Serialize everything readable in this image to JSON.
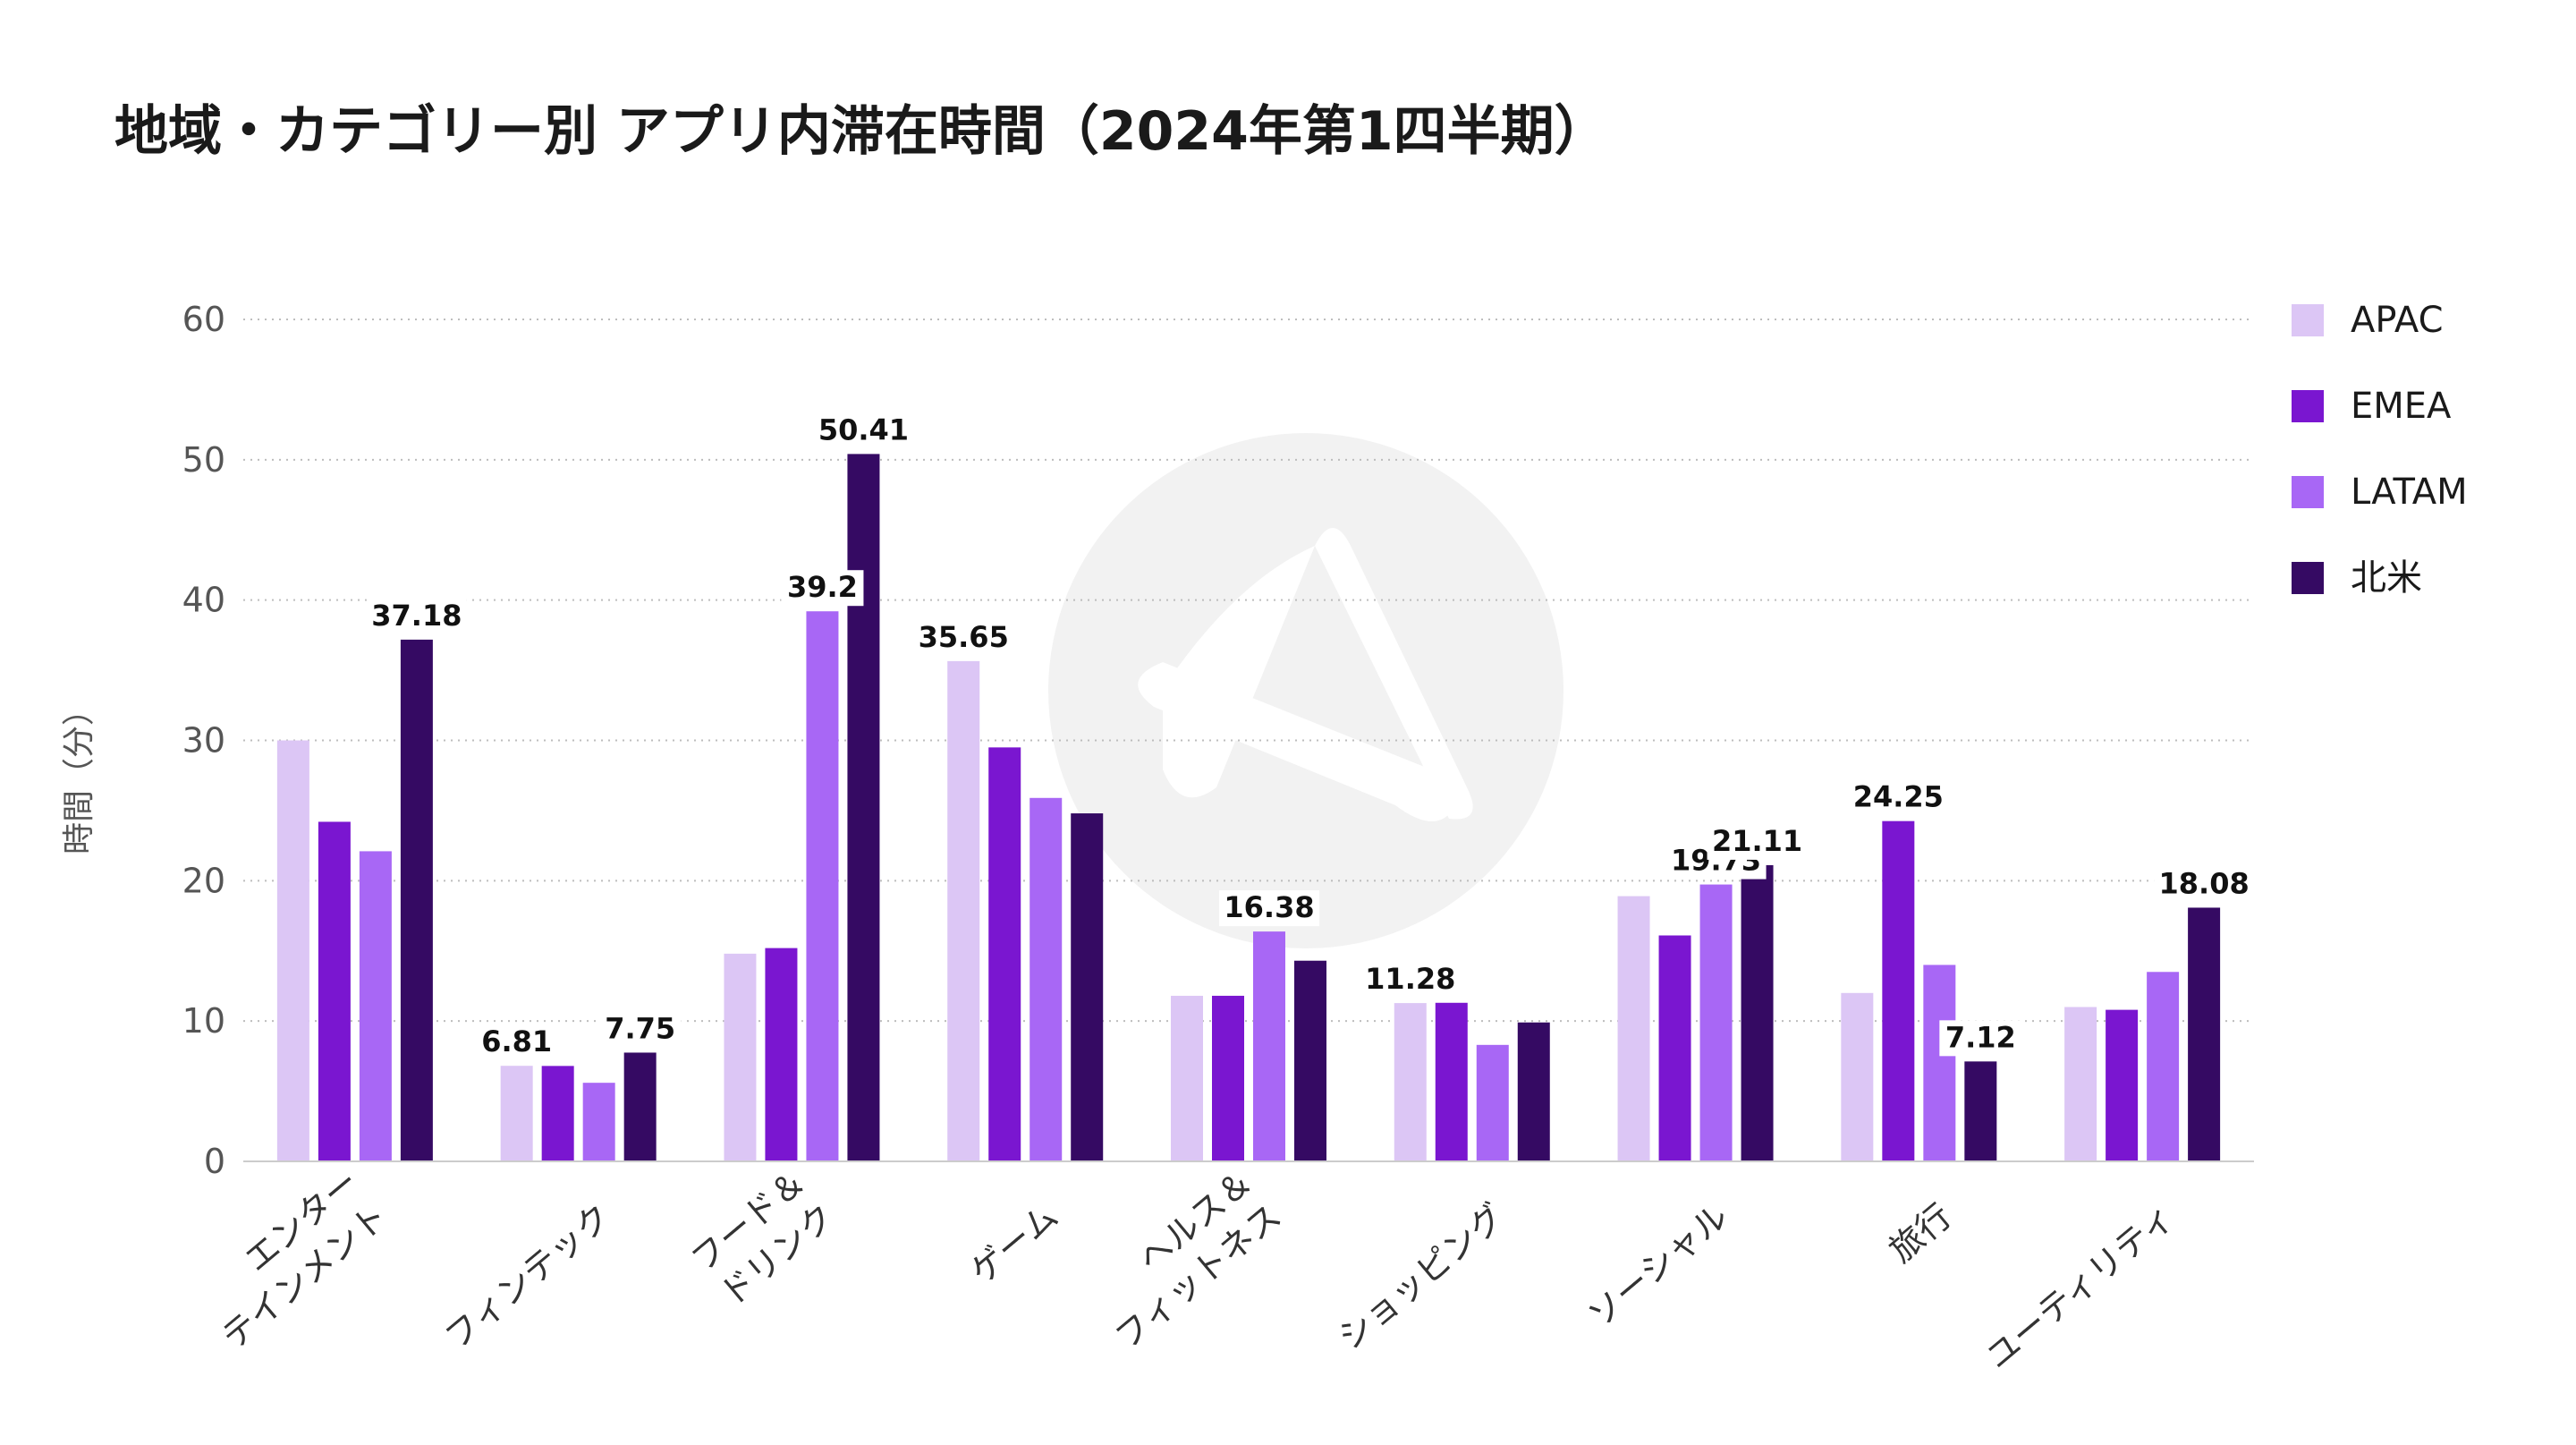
{
  "title": "地域・カテゴリー別 アプリ内滞在時間（2024年第1四半期）",
  "chart_data": {
    "type": "bar",
    "title": "地域・カテゴリー別 アプリ内滞在時間（2024年第1四半期）",
    "xlabel": "",
    "ylabel": "時間（分）",
    "ylim": [
      0,
      60
    ],
    "yticks": [
      "0",
      "10",
      "20",
      "30",
      "40",
      "50",
      "60"
    ],
    "grid": true,
    "legend_position": "right",
    "categories": [
      [
        "エンター",
        "テインメント"
      ],
      [
        "フィンテック"
      ],
      [
        "フード＆",
        "ドリンク"
      ],
      [
        "ゲーム"
      ],
      [
        "ヘルス＆",
        "フィットネス"
      ],
      [
        "ショッピング"
      ],
      [
        "ソーシャル"
      ],
      [
        "旅行"
      ],
      [
        "ユーティリティ"
      ]
    ],
    "series": [
      {
        "name": "APAC",
        "color": "#dcc6f5",
        "values": [
          30.0,
          6.81,
          14.8,
          35.65,
          11.8,
          11.28,
          18.9,
          12.0,
          11.0
        ]
      },
      {
        "name": "EMEA",
        "color": "#7a16d0",
        "values": [
          24.2,
          6.8,
          15.2,
          29.5,
          11.8,
          11.3,
          16.1,
          24.25,
          10.8
        ]
      },
      {
        "name": "LATAM",
        "color": "#a867f5",
        "values": [
          22.1,
          5.6,
          39.2,
          25.9,
          16.38,
          8.3,
          19.73,
          14.0,
          13.5
        ]
      },
      {
        "name": "北米",
        "color": "#350a63",
        "values": [
          37.18,
          7.75,
          50.41,
          24.8,
          14.3,
          9.9,
          21.11,
          7.12,
          18.08
        ]
      }
    ],
    "data_labels": [
      {
        "category": 0,
        "series": 3,
        "text": "37.18"
      },
      {
        "category": 1,
        "series": 0,
        "text": "6.81"
      },
      {
        "category": 1,
        "series": 3,
        "text": "7.75"
      },
      {
        "category": 2,
        "series": 2,
        "text": "39.2"
      },
      {
        "category": 2,
        "series": 3,
        "text": "50.41"
      },
      {
        "category": 3,
        "series": 0,
        "text": "35.65"
      },
      {
        "category": 4,
        "series": 2,
        "text": "16.38"
      },
      {
        "category": 5,
        "series": 0,
        "text": "11.28"
      },
      {
        "category": 6,
        "series": 2,
        "text": "19.73"
      },
      {
        "category": 6,
        "series": 3,
        "text": "21.11"
      },
      {
        "category": 7,
        "series": 1,
        "text": "24.25"
      },
      {
        "category": 7,
        "series": 3,
        "text": "7.12"
      },
      {
        "category": 8,
        "series": 3,
        "text": "18.08"
      }
    ]
  }
}
